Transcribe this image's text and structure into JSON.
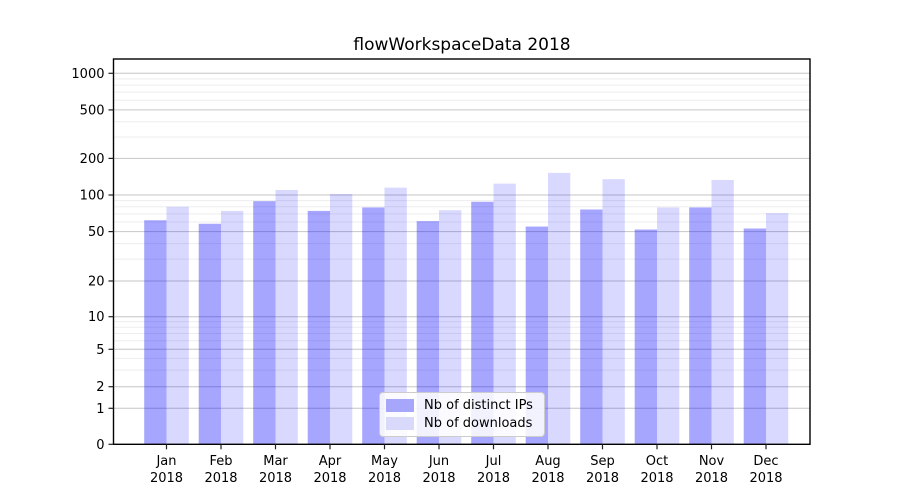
{
  "chart_data": {
    "type": "bar",
    "title": "flowWorkspaceData 2018",
    "categories": [
      "Jan",
      "Feb",
      "Mar",
      "Apr",
      "May",
      "Jun",
      "Jul",
      "Aug",
      "Sep",
      "Oct",
      "Nov",
      "Dec"
    ],
    "category_year": "2018",
    "series": [
      {
        "name": "Nb of distinct IPs",
        "base_color": "#0000ff",
        "alpha": 0.35,
        "blended_color": "#a6a6fa",
        "values": [
          62,
          58,
          89,
          74,
          79,
          61,
          88,
          55,
          76,
          52,
          79,
          53
        ]
      },
      {
        "name": "Nb of downloads",
        "base_color": "#0000ff",
        "alpha": 0.15,
        "blended_color": "#d9d9fb",
        "values": [
          80,
          74,
          110,
          102,
          115,
          75,
          124,
          152,
          135,
          79,
          133,
          71
        ]
      }
    ],
    "yscale": "symlog",
    "yticks": [
      0,
      1,
      2,
      5,
      10,
      20,
      50,
      100,
      200,
      500,
      1000
    ],
    "ylim": [
      0,
      1260
    ],
    "grid": "both",
    "legend_position": "lower-center",
    "colors": {
      "major_grid": "#c6c6c6",
      "minor_grid": "#ededed",
      "spine": "#000000",
      "tick": "#222222",
      "text": "#000000"
    }
  }
}
